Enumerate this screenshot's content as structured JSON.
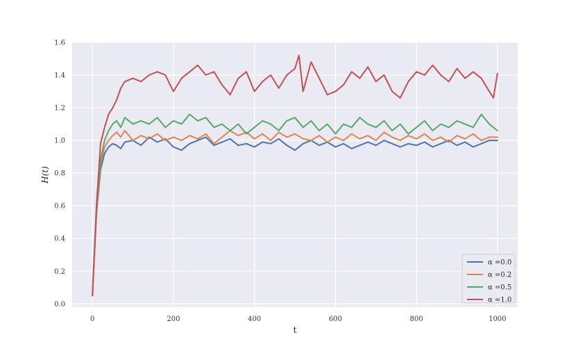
{
  "chart_data": {
    "type": "line",
    "title": "",
    "xlabel": "t",
    "ylabel": "H(t)",
    "xlim": [
      -50,
      1050
    ],
    "ylim": [
      -0.02,
      1.6
    ],
    "xticks": [
      0,
      200,
      400,
      600,
      800,
      1000
    ],
    "yticks": [
      0.0,
      0.2,
      0.4,
      0.6,
      0.8,
      1.0,
      1.2,
      1.4,
      1.6
    ],
    "xtick_labels": [
      "0",
      "200",
      "400",
      "600",
      "800",
      "1000"
    ],
    "ytick_labels": [
      "0.0",
      "0.2",
      "0.4",
      "0.6",
      "0.8",
      "1.0",
      "1.2",
      "1.4",
      "1.6"
    ],
    "grid": true,
    "legend_position": "bottom-right",
    "background_color": "#eaeaf2",
    "series": [
      {
        "name": "α =0.0",
        "color": "#4c72b0",
        "x": [
          0,
          10,
          20,
          30,
          40,
          50,
          60,
          70,
          80,
          100,
          120,
          140,
          160,
          180,
          200,
          220,
          240,
          260,
          280,
          300,
          320,
          340,
          360,
          380,
          400,
          420,
          440,
          460,
          480,
          500,
          520,
          540,
          560,
          580,
          600,
          620,
          640,
          660,
          680,
          700,
          720,
          740,
          760,
          780,
          800,
          820,
          840,
          860,
          880,
          900,
          920,
          940,
          960,
          980,
          1000
        ],
        "y": [
          0.05,
          0.55,
          0.82,
          0.92,
          0.96,
          0.98,
          0.97,
          0.95,
          0.99,
          1.0,
          0.97,
          1.02,
          0.99,
          1.01,
          0.96,
          0.94,
          0.98,
          1.0,
          1.02,
          0.97,
          0.99,
          1.01,
          0.97,
          0.98,
          0.96,
          0.99,
          0.98,
          1.01,
          0.97,
          0.94,
          0.98,
          1.0,
          0.97,
          0.99,
          0.96,
          0.98,
          0.95,
          0.97,
          0.99,
          0.97,
          1.0,
          0.98,
          0.96,
          0.98,
          0.97,
          0.99,
          0.96,
          0.98,
          1.0,
          0.97,
          0.99,
          0.96,
          0.98,
          1.0,
          1.0
        ]
      },
      {
        "name": "α =0.2",
        "color": "#dd8452",
        "x": [
          0,
          10,
          20,
          30,
          40,
          50,
          60,
          70,
          80,
          100,
          120,
          140,
          160,
          180,
          200,
          220,
          240,
          260,
          280,
          300,
          320,
          340,
          360,
          380,
          400,
          420,
          440,
          460,
          480,
          500,
          520,
          540,
          560,
          580,
          600,
          620,
          640,
          660,
          680,
          700,
          720,
          740,
          760,
          780,
          800,
          820,
          840,
          860,
          880,
          900,
          920,
          940,
          960,
          980,
          1000
        ],
        "y": [
          0.05,
          0.56,
          0.85,
          0.96,
          1.0,
          1.03,
          1.05,
          1.02,
          1.06,
          1.0,
          1.03,
          1.01,
          1.04,
          1.0,
          1.02,
          1.0,
          1.03,
          1.01,
          1.04,
          0.98,
          1.02,
          1.06,
          1.03,
          1.05,
          1.01,
          1.04,
          1.0,
          1.05,
          1.02,
          1.04,
          1.01,
          1.0,
          1.03,
          0.99,
          1.02,
          1.0,
          1.04,
          1.01,
          1.03,
          1.0,
          1.05,
          1.02,
          1.0,
          1.03,
          1.01,
          1.04,
          1.0,
          1.02,
          0.99,
          1.03,
          1.01,
          1.04,
          1.0,
          1.02,
          1.02
        ]
      },
      {
        "name": "α =0.5",
        "color": "#55a868",
        "x": [
          0,
          10,
          20,
          30,
          40,
          50,
          60,
          70,
          80,
          100,
          120,
          140,
          160,
          180,
          200,
          220,
          240,
          260,
          280,
          300,
          320,
          340,
          360,
          380,
          400,
          420,
          440,
          460,
          480,
          500,
          520,
          540,
          560,
          580,
          600,
          620,
          640,
          660,
          680,
          700,
          720,
          740,
          760,
          780,
          800,
          820,
          840,
          860,
          880,
          900,
          920,
          940,
          960,
          980,
          1000
        ],
        "y": [
          0.05,
          0.58,
          0.88,
          1.0,
          1.06,
          1.1,
          1.12,
          1.08,
          1.14,
          1.1,
          1.12,
          1.1,
          1.14,
          1.08,
          1.12,
          1.1,
          1.16,
          1.12,
          1.14,
          1.08,
          1.1,
          1.06,
          1.1,
          1.04,
          1.08,
          1.12,
          1.1,
          1.06,
          1.12,
          1.14,
          1.08,
          1.12,
          1.06,
          1.1,
          1.04,
          1.1,
          1.08,
          1.14,
          1.1,
          1.08,
          1.12,
          1.06,
          1.1,
          1.04,
          1.08,
          1.12,
          1.06,
          1.1,
          1.08,
          1.12,
          1.1,
          1.08,
          1.16,
          1.1,
          1.06
        ]
      },
      {
        "name": "α =1.0",
        "color": "#c44e52",
        "x": [
          0,
          10,
          20,
          30,
          40,
          50,
          60,
          70,
          80,
          100,
          120,
          140,
          160,
          180,
          200,
          220,
          240,
          260,
          280,
          300,
          320,
          340,
          360,
          380,
          400,
          420,
          440,
          460,
          480,
          500,
          510,
          520,
          540,
          560,
          580,
          600,
          620,
          640,
          660,
          680,
          700,
          720,
          740,
          760,
          780,
          800,
          820,
          840,
          860,
          880,
          900,
          920,
          940,
          960,
          980,
          990,
          1000
        ],
        "y": [
          0.05,
          0.6,
          0.98,
          1.08,
          1.16,
          1.2,
          1.25,
          1.32,
          1.36,
          1.38,
          1.36,
          1.4,
          1.42,
          1.4,
          1.3,
          1.38,
          1.42,
          1.46,
          1.4,
          1.42,
          1.34,
          1.28,
          1.38,
          1.42,
          1.3,
          1.36,
          1.4,
          1.32,
          1.4,
          1.44,
          1.52,
          1.3,
          1.48,
          1.38,
          1.28,
          1.3,
          1.34,
          1.42,
          1.38,
          1.45,
          1.36,
          1.4,
          1.3,
          1.26,
          1.36,
          1.42,
          1.4,
          1.46,
          1.4,
          1.36,
          1.44,
          1.38,
          1.42,
          1.38,
          1.3,
          1.26,
          1.41
        ]
      }
    ]
  }
}
